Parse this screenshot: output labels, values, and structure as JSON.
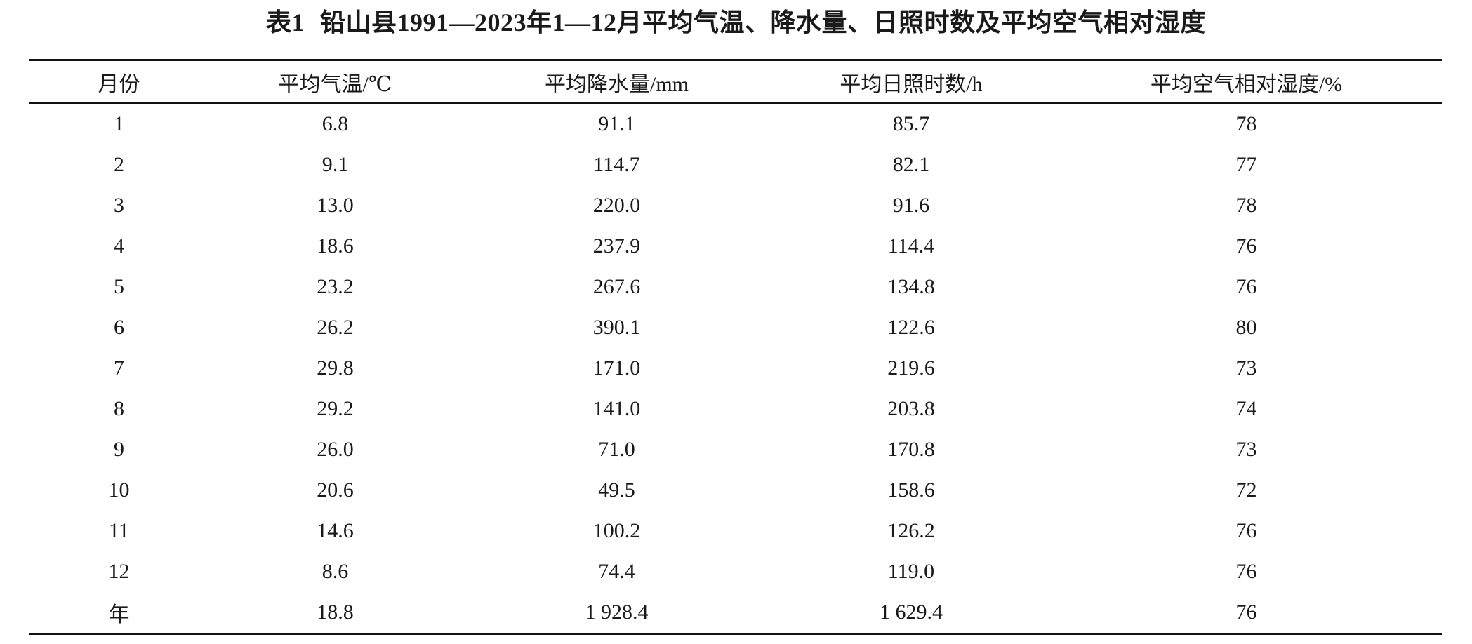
{
  "caption": {
    "label": "表1",
    "title": "铅山县1991—2023年1—12月平均气温、降水量、日照时数及平均空气相对湿度"
  },
  "table": {
    "headers": [
      "月份",
      "平均气温/℃",
      "平均降水量/mm",
      "平均日照时数/h",
      "平均空气相对湿度/%"
    ],
    "rows": [
      [
        "1",
        "6.8",
        "91.1",
        "85.7",
        "78"
      ],
      [
        "2",
        "9.1",
        "114.7",
        "82.1",
        "77"
      ],
      [
        "3",
        "13.0",
        "220.0",
        "91.6",
        "78"
      ],
      [
        "4",
        "18.6",
        "237.9",
        "114.4",
        "76"
      ],
      [
        "5",
        "23.2",
        "267.6",
        "134.8",
        "76"
      ],
      [
        "6",
        "26.2",
        "390.1",
        "122.6",
        "80"
      ],
      [
        "7",
        "29.8",
        "171.0",
        "219.6",
        "73"
      ],
      [
        "8",
        "29.2",
        "141.0",
        "203.8",
        "74"
      ],
      [
        "9",
        "26.0",
        "71.0",
        "170.8",
        "73"
      ],
      [
        "10",
        "20.6",
        "49.5",
        "158.6",
        "72"
      ],
      [
        "11",
        "14.6",
        "100.2",
        "126.2",
        "76"
      ],
      [
        "12",
        "8.6",
        "74.4",
        "119.0",
        "76"
      ],
      [
        "年",
        "18.8",
        "1 928.4",
        "1 629.4",
        "76"
      ]
    ]
  }
}
